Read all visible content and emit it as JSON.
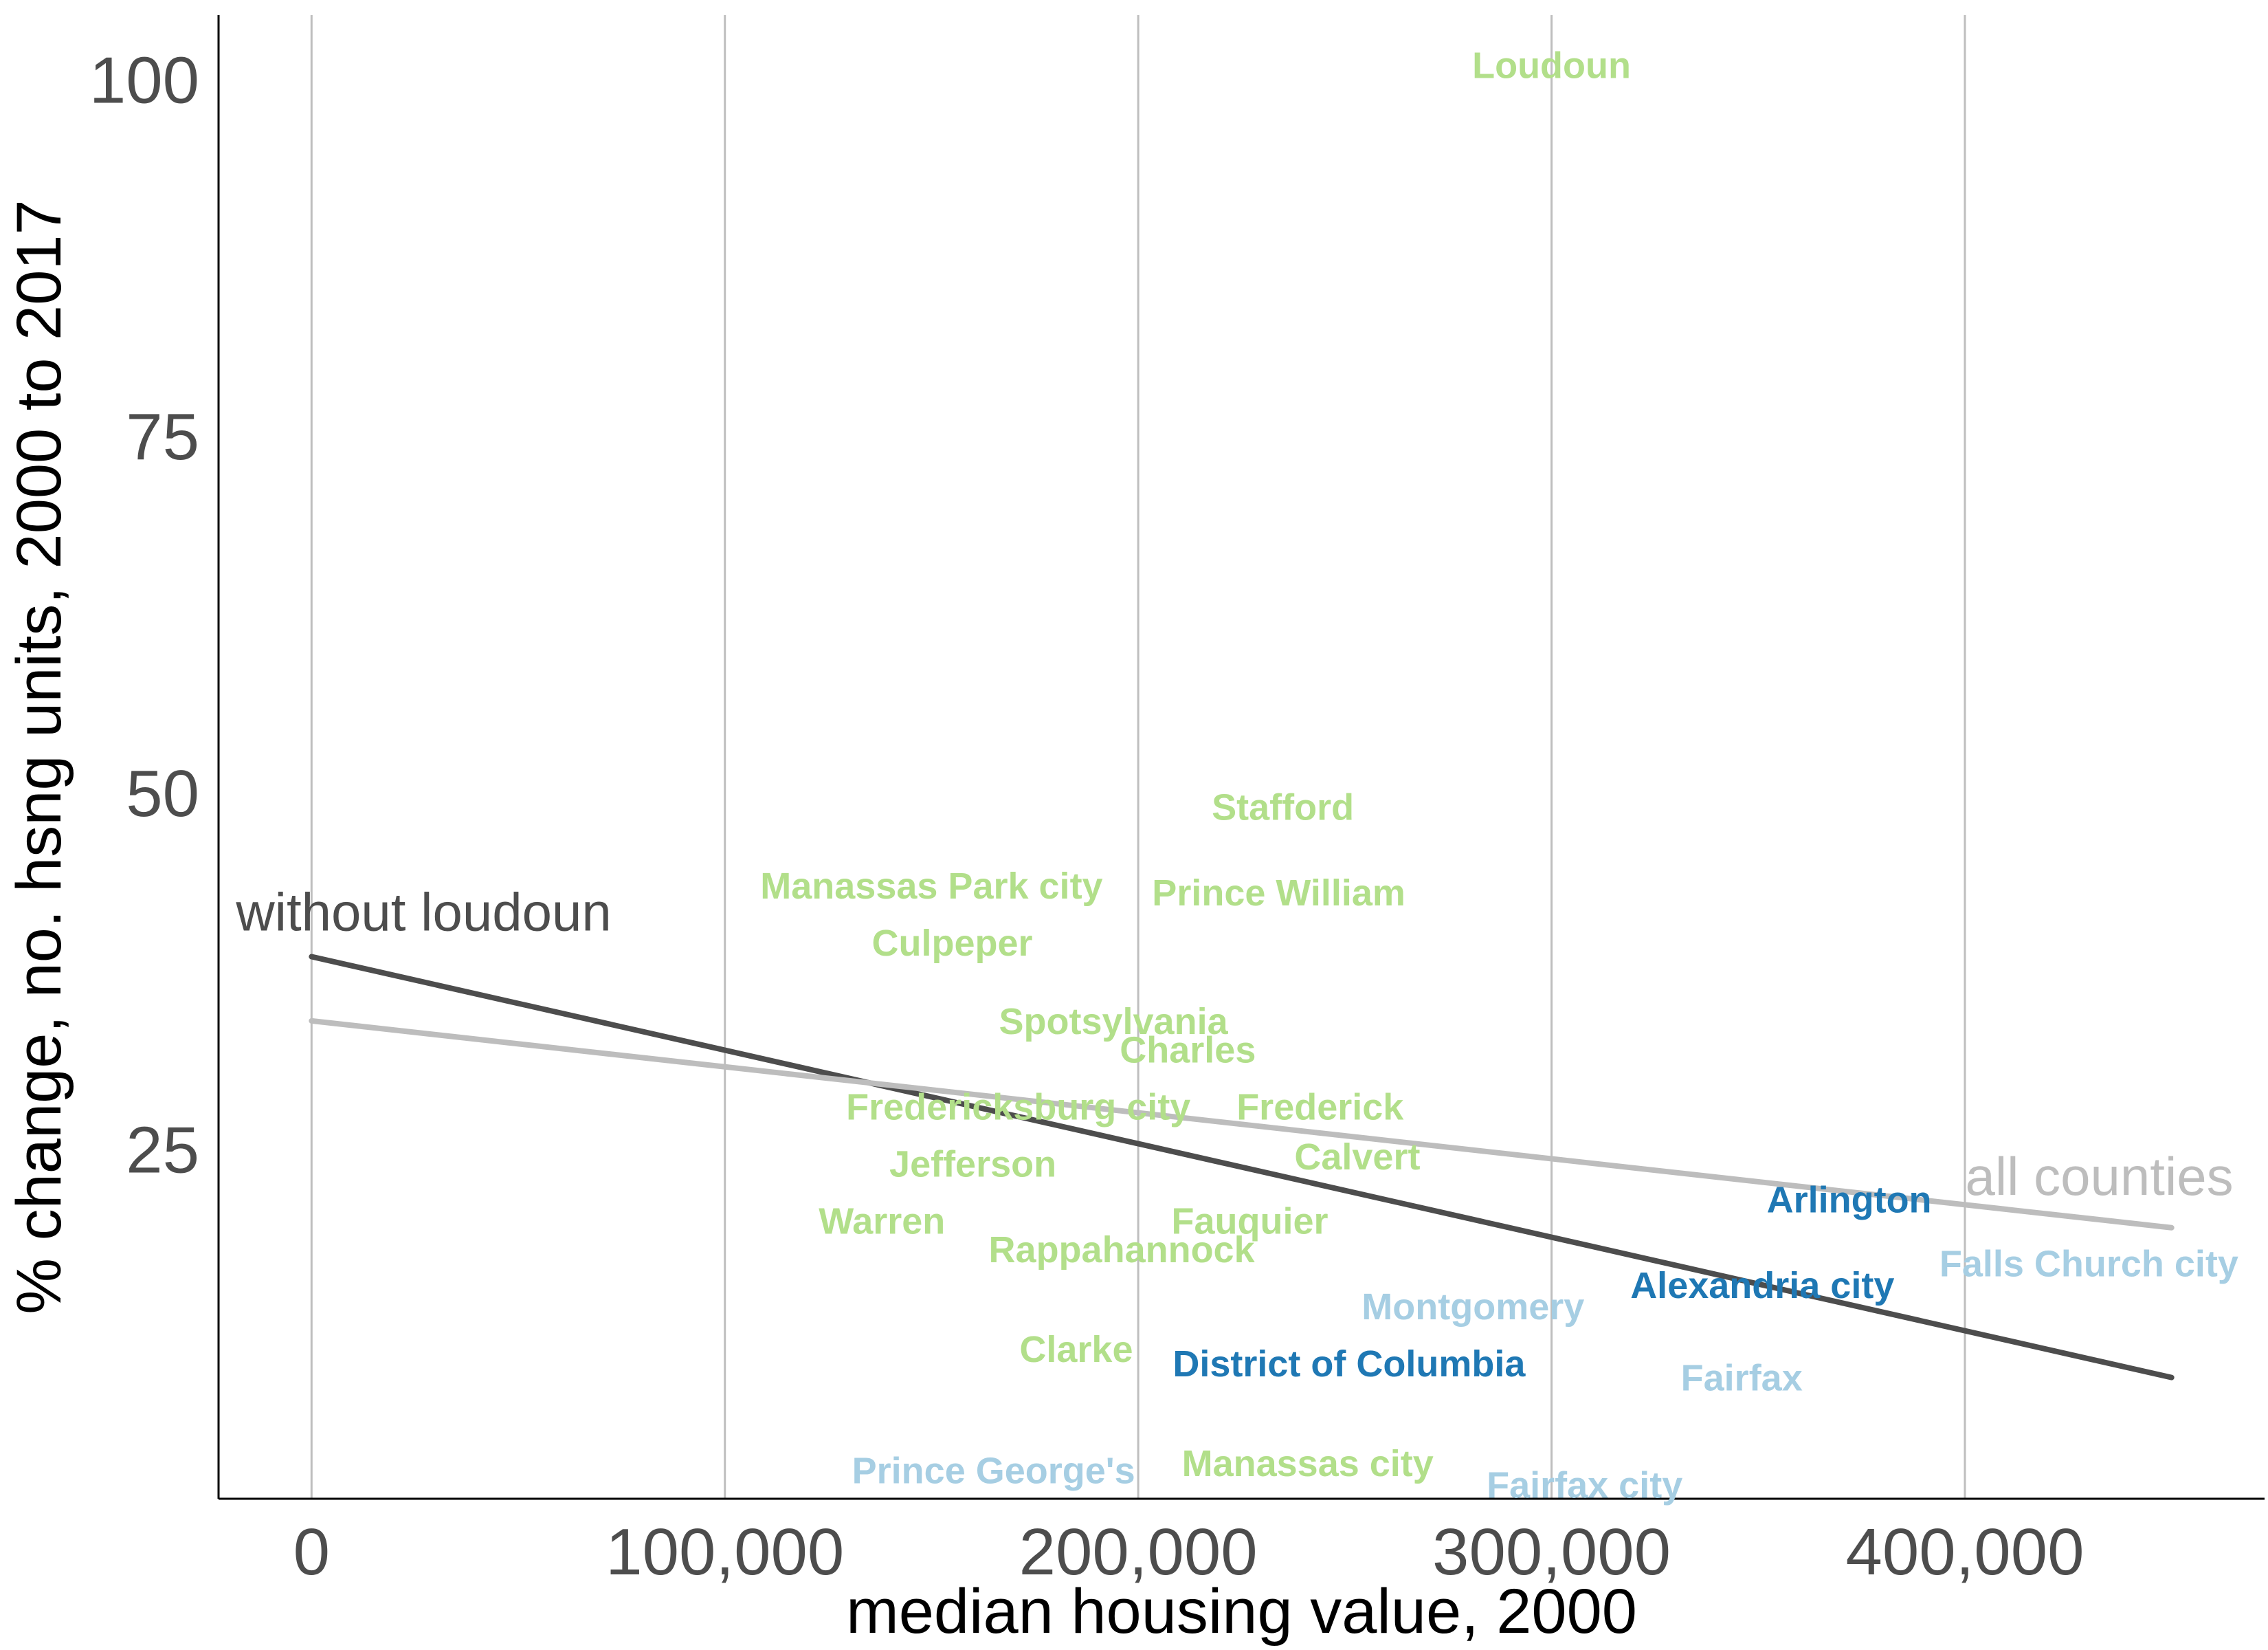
{
  "chart_data": {
    "type": "scatter",
    "title": "",
    "xlabel": "median housing value, 2000",
    "ylabel": "% change, no. hsng units, 2000 to 2017",
    "xlim": [
      -22500,
      472500
    ],
    "ylim": [
      0.5,
      104.5
    ],
    "x_ticks": [
      0,
      100000,
      200000,
      300000,
      400000
    ],
    "x_tick_labels": [
      "0",
      "100,000",
      "200,000",
      "300,000",
      "400,000"
    ],
    "y_ticks": [
      25,
      50,
      75,
      100
    ],
    "y_tick_labels": [
      "25",
      "50",
      "75",
      "100"
    ],
    "grid": "vertical major gridlines",
    "colors": {
      "light_green": "#b2df8a",
      "light_blue": "#a6cee3",
      "dark_blue": "#1f78b4",
      "fit_without_loudoun": "#4d4d4d",
      "fit_all_counties": "#bdbdbd"
    },
    "points": [
      {
        "label": "Loudoun",
        "x": 300000,
        "y": 101,
        "color": "#b2df8a"
      },
      {
        "label": "Stafford",
        "x": 235000,
        "y": 49,
        "color": "#b2df8a"
      },
      {
        "label": "Manassas Park city",
        "x": 150000,
        "y": 43.5,
        "color": "#b2df8a"
      },
      {
        "label": "Prince William",
        "x": 234000,
        "y": 43,
        "color": "#b2df8a"
      },
      {
        "label": "Culpeper",
        "x": 155000,
        "y": 39.5,
        "color": "#b2df8a"
      },
      {
        "label": "Spotsylvania",
        "x": 194000,
        "y": 34,
        "color": "#b2df8a"
      },
      {
        "label": "Charles",
        "x": 212000,
        "y": 32,
        "color": "#b2df8a"
      },
      {
        "label": "Fredericksburg city",
        "x": 171000,
        "y": 28,
        "color": "#b2df8a"
      },
      {
        "label": "Frederick",
        "x": 244000,
        "y": 28,
        "color": "#b2df8a"
      },
      {
        "label": "Calvert",
        "x": 253000,
        "y": 24.5,
        "color": "#b2df8a"
      },
      {
        "label": "Jefferson",
        "x": 160000,
        "y": 24,
        "color": "#b2df8a"
      },
      {
        "label": "Warren",
        "x": 138000,
        "y": 20,
        "color": "#b2df8a"
      },
      {
        "label": "Fauquier",
        "x": 227000,
        "y": 20,
        "color": "#b2df8a"
      },
      {
        "label": "Rappahannock",
        "x": 196000,
        "y": 18,
        "color": "#b2df8a"
      },
      {
        "label": "Clarke",
        "x": 185000,
        "y": 11,
        "color": "#b2df8a"
      },
      {
        "label": "Manassas city",
        "x": 241000,
        "y": 3,
        "color": "#b2df8a"
      },
      {
        "label": "Arlington",
        "x": 372000,
        "y": 21.5,
        "color": "#1f78b4"
      },
      {
        "label": "Alexandria city",
        "x": 351000,
        "y": 15.5,
        "color": "#1f78b4"
      },
      {
        "label": "District of Columbia",
        "x": 251000,
        "y": 10,
        "color": "#1f78b4"
      },
      {
        "label": "Falls Church city",
        "x": 430000,
        "y": 17,
        "color": "#a6cee3"
      },
      {
        "label": "Montgomery",
        "x": 281000,
        "y": 14,
        "color": "#a6cee3"
      },
      {
        "label": "Fairfax",
        "x": 346000,
        "y": 9,
        "color": "#a6cee3"
      },
      {
        "label": "Prince George's",
        "x": 165000,
        "y": 2.5,
        "color": "#a6cee3"
      },
      {
        "label": "Fairfax city",
        "x": 308000,
        "y": 1.5,
        "color": "#a6cee3"
      }
    ],
    "fit_lines": [
      {
        "name": "without loudoun",
        "x": [
          0,
          450000
        ],
        "y": [
          38.5,
          9
        ],
        "color": "#4d4d4d",
        "label_anchor": "start-above"
      },
      {
        "name": "all counties",
        "x": [
          0,
          450000
        ],
        "y": [
          34,
          19.5
        ],
        "color": "#bdbdbd",
        "label_anchor": "end-above"
      }
    ]
  }
}
